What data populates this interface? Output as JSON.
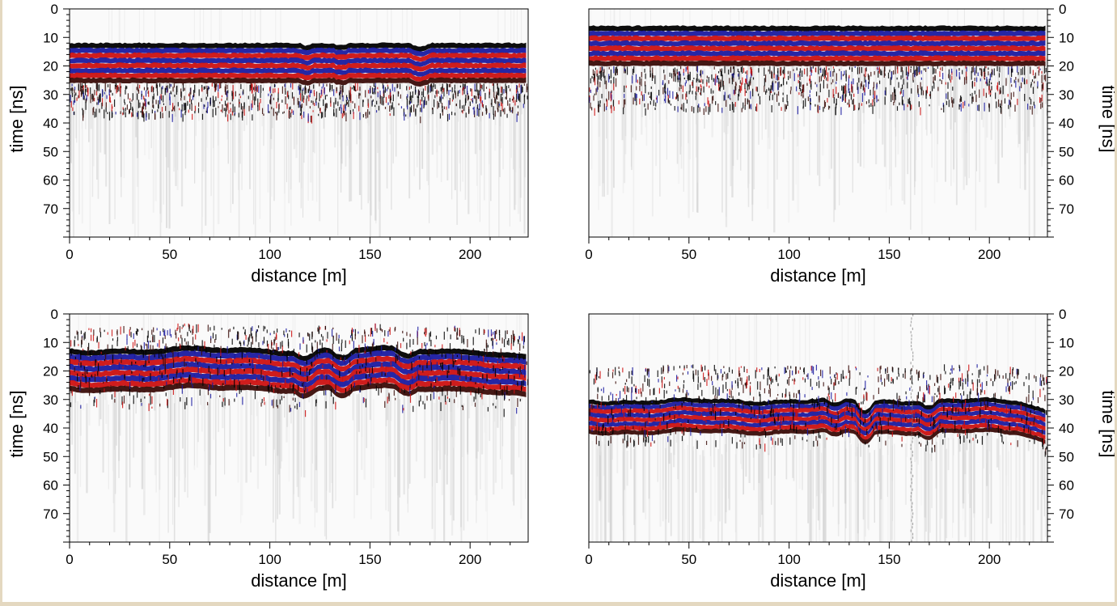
{
  "figure": {
    "background": "#e4d8c0",
    "colors": {
      "positive": "#cc1111",
      "negative": "#1a1aa0",
      "dark": "#3a0c08",
      "black": "#000000",
      "noise": "#c8c8c8"
    }
  },
  "chart_data": [
    {
      "id": "p1",
      "type": "heatmap",
      "title": "",
      "xlabel": "distance [m]",
      "ylabel": "time [ns]",
      "ylabel_side": "left",
      "xlim": [
        0,
        229
      ],
      "ylim": [
        0,
        80
      ],
      "xticks": [
        0,
        50,
        100,
        150,
        200
      ],
      "yticks": [
        0,
        10,
        20,
        30,
        40,
        50,
        60,
        70
      ],
      "xtick_labels": [
        "0",
        "50",
        "100",
        "150",
        "200"
      ],
      "ytick_labels": [
        "0",
        "10",
        "20",
        "30",
        "40",
        "50",
        "60",
        "70"
      ],
      "first_arrival_ns": 12,
      "direct_wave_ns": [
        12,
        26
      ],
      "reflection_zone_ns": [
        26,
        37
      ],
      "description": "flat strong direct wave bands red/blue alternating, weak reflections below"
    },
    {
      "id": "p2",
      "type": "heatmap",
      "title": "",
      "xlabel": "distance [m]",
      "ylabel": "time [ns]",
      "ylabel_side": "right",
      "xlim": [
        0,
        229
      ],
      "ylim": [
        0,
        80
      ],
      "xticks": [
        0,
        50,
        100,
        150,
        200
      ],
      "yticks": [
        0,
        10,
        20,
        30,
        40,
        50,
        60,
        70
      ],
      "xtick_labels": [
        "0",
        "50",
        "100",
        "150",
        "200"
      ],
      "ytick_labels": [
        "0",
        "10",
        "20",
        "30",
        "40",
        "50",
        "60",
        "70"
      ],
      "first_arrival_ns": 6,
      "direct_wave_ns": [
        6,
        20
      ],
      "reflection_zone_ns": [
        20,
        35
      ],
      "description": "flat strong direct wave bands, reflections 24-33 ns"
    },
    {
      "id": "p3",
      "type": "heatmap",
      "title": "",
      "xlabel": "distance [m]",
      "ylabel": "time [ns]",
      "ylabel_side": "left",
      "xlim": [
        0,
        229
      ],
      "ylim": [
        0,
        80
      ],
      "xticks": [
        0,
        50,
        100,
        150,
        200
      ],
      "yticks": [
        0,
        10,
        20,
        30,
        40,
        50,
        60,
        70
      ],
      "xtick_labels": [
        "0",
        "50",
        "100",
        "150",
        "200"
      ],
      "ytick_labels": [
        "0",
        "10",
        "20",
        "30",
        "40",
        "50",
        "60",
        "70"
      ],
      "first_arrival_ns": 12,
      "direct_wave_ns": [
        12,
        27
      ],
      "reflection_zone_ns": [
        4,
        32
      ],
      "description": "undulating banded arrivals 12-30 ns"
    },
    {
      "id": "p4",
      "type": "heatmap",
      "title": "",
      "xlabel": "distance [m]",
      "ylabel": "time [ns]",
      "ylabel_side": "right",
      "xlim": [
        0,
        229
      ],
      "ylim": [
        0,
        80
      ],
      "xticks": [
        0,
        50,
        100,
        150,
        200
      ],
      "yticks": [
        0,
        10,
        20,
        30,
        40,
        50,
        60,
        70
      ],
      "xtick_labels": [
        "0",
        "50",
        "100",
        "150",
        "200"
      ],
      "ytick_labels": [
        "0",
        "10",
        "20",
        "30",
        "40",
        "50",
        "60",
        "70"
      ],
      "first_arrival_ns": 30,
      "direct_wave_ns": [
        30,
        42
      ],
      "reflection_zone_ns": [
        18,
        45
      ],
      "description": "banded arrivals 30-42 ns, vertical artifact near 161 m"
    }
  ]
}
